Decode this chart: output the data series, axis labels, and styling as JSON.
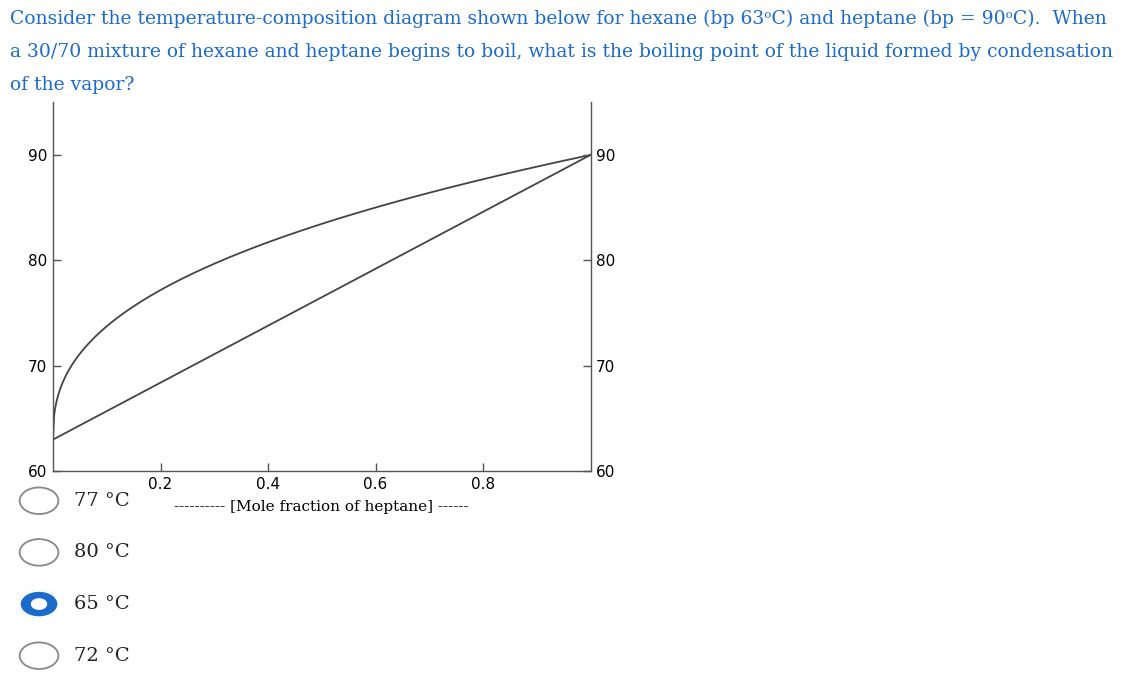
{
  "title_line1": "Consider the temperature-composition diagram shown below for hexane (bp 63ᵒC) and heptane (bp = 90ᵒC).  When",
  "title_line2": "a 30/70 mixture of hexane and heptane begins to boil, what is the boiling point of the liquid formed by condensation",
  "title_line3": "of the vapor?",
  "xlabel": "---------- [Mole fraction of heptane] ------",
  "ylim": [
    60,
    95
  ],
  "xlim": [
    0,
    1.0
  ],
  "yticks": [
    60,
    70,
    80,
    90
  ],
  "xticks": [
    0.2,
    0.4,
    0.6,
    0.8
  ],
  "bp_hexane": 63,
  "bp_heptane": 90,
  "line_color": "#444444",
  "background_color": "#ffffff",
  "choices": [
    "77 °C",
    "80 °C",
    "65 °C",
    "72 °C"
  ],
  "selected_choice": 2,
  "choice_circle_color": "#1a6bcc",
  "title_color": "#1a6bcc",
  "title_fontsize": 13.5,
  "tick_fontsize": 11,
  "choice_fontsize": 14
}
